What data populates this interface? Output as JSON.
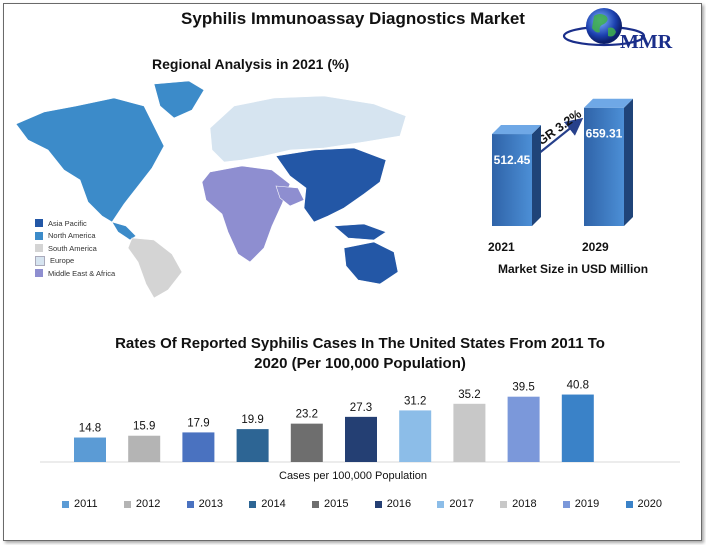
{
  "header": {
    "title": "Syphilis Immunoassay Diagnostics Market",
    "logo_text": "MMR"
  },
  "regional": {
    "title": "Regional Analysis in 2021 (%)",
    "legend": [
      {
        "label": "Asia Pacific",
        "color": "#2357a6"
      },
      {
        "label": "North America",
        "color": "#3c8bc9"
      },
      {
        "label": "South America",
        "color": "#d4d4d4"
      },
      {
        "label": "Europe",
        "color": "#d6e4f0"
      },
      {
        "label": "Middle East & Africa",
        "color": "#8e8ed0"
      }
    ]
  },
  "chart_data": [
    {
      "type": "bar",
      "title": "",
      "categories": [
        "2021",
        "2029"
      ],
      "values": [
        512.45,
        659.31
      ],
      "annotation": "CAGR 3.2%",
      "xlabel": "Market Size in USD Million",
      "ylabel": ""
    },
    {
      "type": "bar",
      "title": "Rates Of Reported Syphilis Cases In The United States From 2011 To 2020 (Per 100,000 Population)",
      "categories": [
        "2011",
        "2012",
        "2013",
        "2014",
        "2015",
        "2016",
        "2017",
        "2018",
        "2019",
        "2020"
      ],
      "values": [
        14.8,
        15.9,
        17.9,
        19.9,
        23.2,
        27.3,
        31.2,
        35.2,
        39.5,
        40.8
      ],
      "xlabel": "Cases per 100,000 Population",
      "ylabel": "",
      "legend_position": "bottom",
      "colors": [
        "#5b9bd5",
        "#b4b4b4",
        "#4a72c0",
        "#2d6594",
        "#6e6e6e",
        "#243f73",
        "#8cbde8",
        "#c8c8c8",
        "#7b98da",
        "#3a82c8"
      ]
    }
  ]
}
